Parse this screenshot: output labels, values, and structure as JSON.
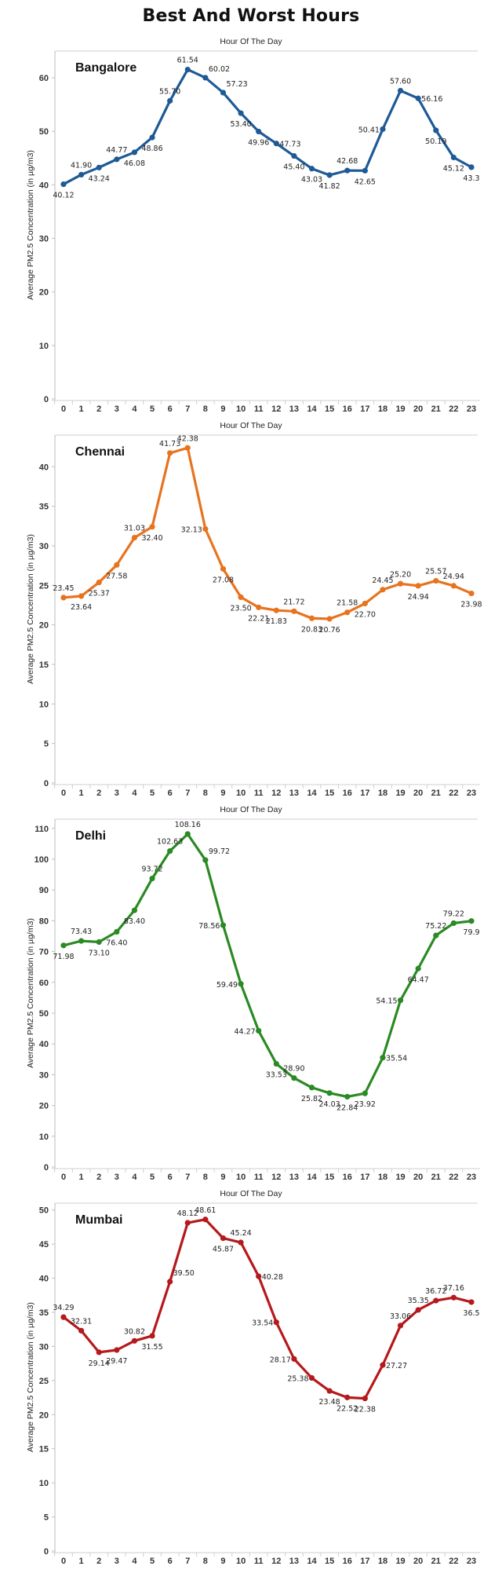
{
  "title": "Best And Worst Hours",
  "chart_data": [
    {
      "type": "line",
      "title": "Bangalore",
      "xlabel": "Hour Of The Day",
      "ylabel": "Average PM2.5 Concentration (in µg/m3)",
      "color": "#1f5a96",
      "ylim": [
        0,
        65
      ],
      "yticks": [
        0,
        10,
        20,
        30,
        40,
        50,
        60
      ],
      "x": [
        0,
        1,
        2,
        3,
        4,
        5,
        6,
        7,
        8,
        9,
        10,
        11,
        12,
        13,
        14,
        15,
        16,
        17,
        18,
        19,
        20,
        21,
        22,
        23
      ],
      "values": [
        40.12,
        41.9,
        43.24,
        44.77,
        46.08,
        48.86,
        55.7,
        61.54,
        60.02,
        57.23,
        53.4,
        49.96,
        47.73,
        45.4,
        43.03,
        41.82,
        42.68,
        42.65,
        50.41,
        57.6,
        56.16,
        50.19,
        45.12,
        43.3
      ],
      "labels": [
        "40.12",
        "41.90",
        "43.24",
        "44.77",
        "46.08",
        "48.86",
        "55.70",
        "61.54",
        "60.02",
        "57.23",
        "53.40",
        "49.96",
        "47.73",
        "45.40",
        "43.03",
        "41.82",
        "42.68",
        "42.65",
        "50.41",
        "57.60",
        "56.16",
        "50.19",
        "45.12",
        "43.3"
      ],
      "label_pos": [
        "below",
        "above",
        "below",
        "above",
        "below",
        "below",
        "above",
        "above",
        "right",
        "right",
        "below",
        "below",
        "right",
        "below",
        "below",
        "below",
        "above",
        "below",
        "left",
        "above",
        "right",
        "below",
        "below",
        "below"
      ],
      "grid": false,
      "legend": "none"
    },
    {
      "type": "line",
      "title": "Chennai",
      "xlabel": "Hour Of The Day",
      "ylabel": "Average PM2.5 Concentration (in µg/m3)",
      "color": "#e8731f",
      "ylim": [
        0,
        44
      ],
      "yticks": [
        0,
        5,
        10,
        15,
        20,
        25,
        30,
        35,
        40
      ],
      "x": [
        0,
        1,
        2,
        3,
        4,
        5,
        6,
        7,
        8,
        9,
        10,
        11,
        12,
        13,
        14,
        15,
        16,
        17,
        18,
        19,
        20,
        21,
        22,
        23
      ],
      "values": [
        23.45,
        23.64,
        25.37,
        27.58,
        31.03,
        32.4,
        41.73,
        42.38,
        32.13,
        27.08,
        23.5,
        22.21,
        21.83,
        21.72,
        20.83,
        20.76,
        21.58,
        22.7,
        24.45,
        25.2,
        24.94,
        25.57,
        24.94,
        23.98
      ],
      "labels": [
        "23.45",
        "23.64",
        "25.37",
        "27.58",
        "31.03",
        "32.40",
        "41.73",
        "42.38",
        "32.13",
        "27.08",
        "23.50",
        "22.21",
        "21.83",
        "21.72",
        "20.83",
        "20.76",
        "21.58",
        "22.70",
        "24.45",
        "25.20",
        "24.94",
        "25.57",
        "24.94",
        "23.98"
      ],
      "label_pos": [
        "above",
        "below",
        "below",
        "below",
        "above",
        "below",
        "above",
        "above",
        "left",
        "below",
        "below",
        "below",
        "below",
        "above",
        "below",
        "below",
        "above",
        "below",
        "above",
        "above",
        "below",
        "above",
        "above",
        "below"
      ],
      "grid": false,
      "legend": "none"
    },
    {
      "type": "line",
      "title": "Delhi",
      "xlabel": "Hour Of The Day",
      "ylabel": "Average PM2.5 Concentration (in µg/m3)",
      "color": "#2a8a23",
      "ylim": [
        0,
        113
      ],
      "yticks": [
        0,
        10,
        20,
        30,
        40,
        50,
        60,
        70,
        80,
        90,
        100,
        110
      ],
      "x": [
        0,
        1,
        2,
        3,
        4,
        5,
        6,
        7,
        8,
        9,
        10,
        11,
        12,
        13,
        14,
        15,
        16,
        17,
        18,
        19,
        20,
        21,
        22,
        23
      ],
      "values": [
        71.98,
        73.43,
        73.1,
        76.4,
        83.4,
        93.72,
        102.63,
        108.16,
        99.72,
        78.56,
        59.49,
        44.27,
        33.53,
        28.9,
        25.82,
        24.03,
        22.84,
        23.92,
        35.54,
        54.15,
        64.47,
        75.22,
        79.22,
        79.9
      ],
      "labels": [
        "71.98",
        "73.43",
        "73.10",
        "76.40",
        "83.40",
        "93.72",
        "102.63",
        "108.16",
        "99.72",
        "78.56",
        "59.49",
        "44.27",
        "33.53",
        "28.90",
        "25.82",
        "24.03",
        "22.84",
        "23.92",
        "35.54",
        "54.15",
        "64.47",
        "75.22",
        "79.22",
        "79.9"
      ],
      "label_pos": [
        "below",
        "above",
        "below",
        "below",
        "below",
        "above",
        "above",
        "above",
        "right",
        "left",
        "left",
        "left",
        "below",
        "above",
        "below",
        "below",
        "below",
        "below",
        "right",
        "left",
        "below",
        "above",
        "above",
        "below"
      ],
      "grid": false,
      "legend": "none"
    },
    {
      "type": "line",
      "title": "Mumbai",
      "xlabel": "Hour Of The Day",
      "ylabel": "Average PM2.5 Concentration (in µg/m3)",
      "color": "#b5191b",
      "ylim": [
        0,
        51
      ],
      "yticks": [
        0,
        5,
        10,
        15,
        20,
        25,
        30,
        35,
        40,
        45,
        50
      ],
      "x": [
        0,
        1,
        2,
        3,
        4,
        5,
        6,
        7,
        8,
        9,
        10,
        11,
        12,
        13,
        14,
        15,
        16,
        17,
        18,
        19,
        20,
        21,
        22,
        23
      ],
      "values": [
        34.29,
        32.31,
        29.14,
        29.47,
        30.82,
        31.55,
        39.5,
        48.12,
        48.61,
        45.87,
        45.24,
        40.28,
        33.54,
        28.17,
        25.38,
        23.48,
        22.52,
        22.38,
        27.27,
        33.06,
        35.35,
        36.72,
        37.16,
        36.5
      ],
      "labels": [
        "34.29",
        "32.31",
        "29.14",
        "29.47",
        "30.82",
        "31.55",
        "39.50",
        "48.12",
        "48.61",
        "45.87",
        "45.24",
        "40.28",
        "33.54",
        "28.17",
        "25.38",
        "23.48",
        "22.52",
        "22.38",
        "27.27",
        "33.06",
        "35.35",
        "36.72",
        "37.16",
        "36.5"
      ],
      "label_pos": [
        "above",
        "above",
        "below",
        "below",
        "above",
        "below",
        "right",
        "above",
        "above",
        "below",
        "above",
        "right",
        "left",
        "left",
        "left",
        "below",
        "below",
        "below",
        "right",
        "above",
        "above",
        "above",
        "above",
        "below"
      ],
      "grid": false,
      "legend": "none"
    }
  ]
}
